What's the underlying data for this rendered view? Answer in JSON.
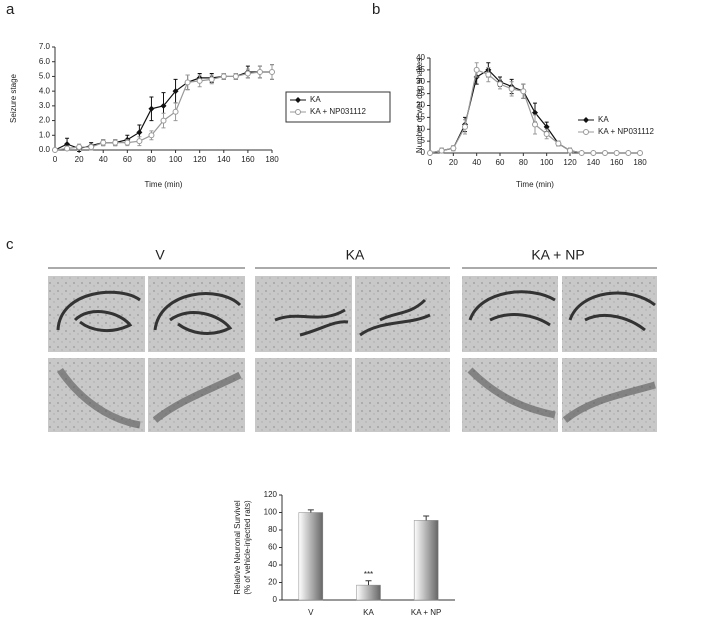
{
  "panel_labels": [
    "a",
    "b",
    "c"
  ],
  "image_groups": [
    "V",
    "KA",
    "KA + NP"
  ],
  "chart_data": [
    {
      "type": "line",
      "xlabel": "Time (min)",
      "ylabel": "Seizure stage",
      "x": [
        0,
        10,
        20,
        30,
        40,
        50,
        60,
        70,
        80,
        90,
        100,
        110,
        120,
        130,
        140,
        150,
        160,
        170,
        180
      ],
      "xlim": [
        0,
        180
      ],
      "xticks": [
        0,
        20,
        40,
        60,
        80,
        100,
        120,
        140,
        160,
        180
      ],
      "ylim": [
        0,
        7
      ],
      "yticks": [
        {
          "value": 0,
          "label": "0.0"
        },
        {
          "value": 1,
          "label": "1.0"
        },
        {
          "value": 2,
          "label": "2.0"
        },
        {
          "value": 3,
          "label": "3.0"
        },
        {
          "value": 4,
          "label": "4.0"
        },
        {
          "value": 5,
          "label": "5.0"
        },
        {
          "value": 6,
          "label": "6.0"
        },
        {
          "value": 7,
          "label": "7.0"
        }
      ],
      "legend": "right",
      "legend_box": true,
      "series": [
        {
          "name": "KA",
          "color": "#111111",
          "marker": "diamond",
          "values": [
            0,
            0.4,
            0.1,
            0.3,
            0.5,
            0.5,
            0.7,
            1.2,
            2.8,
            3.0,
            4.0,
            4.6,
            4.9,
            4.9,
            5.0,
            5.0,
            5.3,
            5.3,
            5.3
          ],
          "errors": [
            0,
            0.4,
            0.2,
            0.2,
            0.2,
            0.2,
            0.3,
            0.5,
            0.8,
            0.9,
            0.8,
            0.5,
            0.3,
            0.3,
            0.2,
            0.2,
            0.4,
            0.4,
            0.5
          ]
        },
        {
          "name": "KA + NP031112",
          "color": "#999999",
          "marker": "circle",
          "values": [
            0,
            0.1,
            0.2,
            0.2,
            0.5,
            0.5,
            0.5,
            0.6,
            1.0,
            2.0,
            2.6,
            4.6,
            4.7,
            4.8,
            5.0,
            5.0,
            5.2,
            5.3,
            5.3
          ],
          "errors": [
            0,
            0.1,
            0.2,
            0.2,
            0.2,
            0.2,
            0.2,
            0.3,
            0.3,
            0.5,
            0.6,
            0.5,
            0.4,
            0.3,
            0.2,
            0.2,
            0.3,
            0.4,
            0.5
          ]
        }
      ]
    },
    {
      "type": "line",
      "xlabel": "Time (min)",
      "ylabel": "Number of wet dog shakes",
      "x": [
        0,
        10,
        20,
        30,
        40,
        50,
        60,
        70,
        80,
        90,
        100,
        110,
        120,
        130,
        140,
        150,
        160,
        170,
        180
      ],
      "xlim": [
        0,
        180
      ],
      "xticks": [
        0,
        20,
        40,
        60,
        80,
        100,
        120,
        140,
        160,
        180
      ],
      "ylim": [
        0,
        40
      ],
      "yticks": [
        0,
        5,
        10,
        15,
        20,
        25,
        30,
        35,
        40
      ],
      "legend": "right",
      "legend_box": false,
      "series": [
        {
          "name": "KA",
          "color": "#111111",
          "marker": "diamond",
          "values": [
            0,
            1,
            2,
            12,
            32,
            35,
            30,
            28,
            26,
            17,
            11,
            4,
            1,
            0,
            0,
            0,
            0,
            0,
            0
          ],
          "errors": [
            0,
            1,
            1,
            3,
            3,
            3,
            2,
            3,
            3,
            4,
            2,
            1,
            1,
            0,
            0,
            0,
            0,
            0,
            0
          ]
        },
        {
          "name": "KA + NP031112",
          "color": "#999999",
          "marker": "circle",
          "values": [
            0,
            1,
            2,
            11,
            35,
            33,
            29,
            27,
            26,
            12,
            8,
            4,
            1,
            0,
            0,
            0,
            0,
            0,
            0
          ],
          "errors": [
            0,
            1,
            1,
            3,
            3,
            3,
            2,
            3,
            3,
            4,
            2,
            1,
            1,
            0,
            0,
            0,
            0,
            0,
            0
          ]
        }
      ]
    },
    {
      "type": "bar",
      "ylabel": [
        "Relative Neuronal Survivel",
        "(% of vehicle-injected rats)"
      ],
      "categories": [
        "V",
        "KA",
        "KA + NP"
      ],
      "values": [
        100,
        17,
        91
      ],
      "errors": [
        3,
        5,
        5
      ],
      "annotations": [
        null,
        "***",
        null
      ],
      "color": "#888888",
      "ylim": [
        0,
        120
      ],
      "yticks": [
        0,
        20,
        40,
        60,
        80,
        100,
        120
      ]
    }
  ]
}
